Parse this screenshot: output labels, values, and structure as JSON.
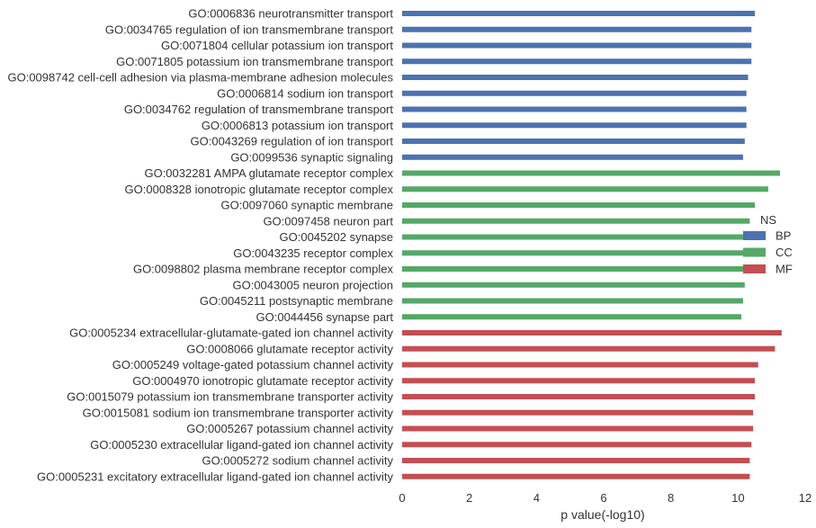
{
  "chart_data": {
    "type": "bar",
    "orientation": "horizontal",
    "xlabel": "p value(-log10)",
    "ylabel": "",
    "title": "",
    "xlim": [
      0,
      12
    ],
    "xticks": [
      0,
      2,
      4,
      6,
      8,
      10,
      12
    ],
    "grid": false,
    "legend": {
      "title": "NS",
      "placement": "center-right",
      "entries": [
        "BP",
        "CC",
        "MF"
      ]
    },
    "colors": {
      "BP": "#4c72b0",
      "CC": "#55a868",
      "MF": "#c44e52"
    },
    "categories": [
      {
        "label": "GO:0006836 neurotransmitter transport",
        "value": 10.5,
        "group": "BP"
      },
      {
        "label": "GO:0034765 regulation of ion transmembrane transport",
        "value": 10.4,
        "group": "BP"
      },
      {
        "label": "GO:0071804 cellular potassium ion transport",
        "value": 10.4,
        "group": "BP"
      },
      {
        "label": "GO:0071805 potassium ion transmembrane transport",
        "value": 10.4,
        "group": "BP"
      },
      {
        "label": "GO:0098742 cell-cell adhesion via plasma-membrane adhesion molecules",
        "value": 10.3,
        "group": "BP"
      },
      {
        "label": "GO:0006814 sodium ion transport",
        "value": 10.25,
        "group": "BP"
      },
      {
        "label": "GO:0034762 regulation of transmembrane transport",
        "value": 10.25,
        "group": "BP"
      },
      {
        "label": "GO:0006813 potassium ion transport",
        "value": 10.25,
        "group": "BP"
      },
      {
        "label": "GO:0043269 regulation of ion transport",
        "value": 10.2,
        "group": "BP"
      },
      {
        "label": "GO:0099536 synaptic signaling",
        "value": 10.15,
        "group": "BP"
      },
      {
        "label": "GO:0032281 AMPA glutamate receptor complex",
        "value": 11.25,
        "group": "CC"
      },
      {
        "label": "GO:0008328 ionotropic glutamate receptor complex",
        "value": 10.9,
        "group": "CC"
      },
      {
        "label": "GO:0097060 synaptic membrane",
        "value": 10.5,
        "group": "CC"
      },
      {
        "label": "GO:0097458 neuron part",
        "value": 10.35,
        "group": "CC"
      },
      {
        "label": "GO:0045202 synapse",
        "value": 10.3,
        "group": "CC"
      },
      {
        "label": "GO:0043235 receptor complex",
        "value": 10.25,
        "group": "CC"
      },
      {
        "label": "GO:0098802 plasma membrane receptor complex",
        "value": 10.2,
        "group": "CC"
      },
      {
        "label": "GO:0043005 neuron projection",
        "value": 10.2,
        "group": "CC"
      },
      {
        "label": "GO:0045211 postsynaptic membrane",
        "value": 10.15,
        "group": "CC"
      },
      {
        "label": "GO:0044456 synapse part",
        "value": 10.1,
        "group": "CC"
      },
      {
        "label": "GO:0005234 extracellular-glutamate-gated ion channel activity",
        "value": 11.3,
        "group": "MF"
      },
      {
        "label": "GO:0008066 glutamate receptor activity",
        "value": 11.1,
        "group": "MF"
      },
      {
        "label": "GO:0005249 voltage-gated potassium channel activity",
        "value": 10.6,
        "group": "MF"
      },
      {
        "label": "GO:0004970 ionotropic glutamate receptor activity",
        "value": 10.5,
        "group": "MF"
      },
      {
        "label": "GO:0015079 potassium ion transmembrane transporter activity",
        "value": 10.5,
        "group": "MF"
      },
      {
        "label": "GO:0015081 sodium ion transmembrane transporter activity",
        "value": 10.45,
        "group": "MF"
      },
      {
        "label": "GO:0005267 potassium channel activity",
        "value": 10.45,
        "group": "MF"
      },
      {
        "label": "GO:0005230 extracellular ligand-gated ion channel activity",
        "value": 10.4,
        "group": "MF"
      },
      {
        "label": "GO:0005272 sodium channel activity",
        "value": 10.35,
        "group": "MF"
      },
      {
        "label": "GO:0005231 excitatory extracellular ligand-gated ion channel activity",
        "value": 10.35,
        "group": "MF"
      }
    ]
  }
}
